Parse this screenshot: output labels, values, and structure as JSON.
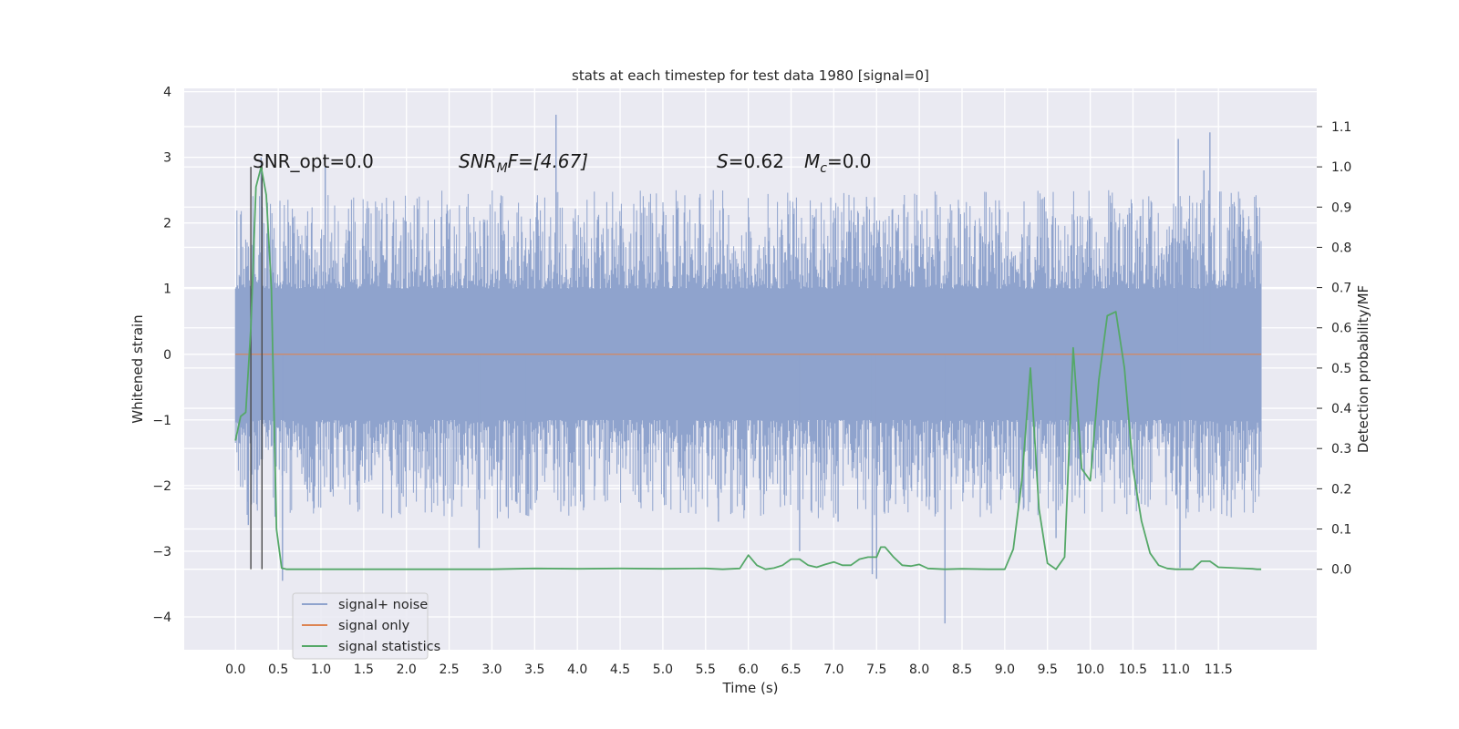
{
  "chart_data": {
    "type": "line",
    "title": "stats at each timestep for test data 1980 [signal=0]",
    "xlabel": "Time (s)",
    "ylabel": "Whitened strain",
    "y2label": "Detection probability/MF",
    "xlim": [
      -0.6,
      12.65
    ],
    "ylim": [
      -4.5,
      4.05
    ],
    "y2lim": [
      -0.2,
      1.195
    ],
    "x_ticks": [
      "0.0",
      "0.5",
      "1.0",
      "1.5",
      "2.0",
      "2.5",
      "3.0",
      "3.5",
      "4.0",
      "4.5",
      "5.0",
      "5.5",
      "6.0",
      "6.5",
      "7.0",
      "7.5",
      "8.0",
      "8.5",
      "9.0",
      "9.5",
      "10.0",
      "10.5",
      "11.0",
      "11.5"
    ],
    "y_ticks": [
      "4",
      "3",
      "2",
      "1",
      "0",
      "−1",
      "−2",
      "−3",
      "−4"
    ],
    "y2_ticks": [
      "1.1",
      "1.0",
      "0.9",
      "0.8",
      "0.7",
      "0.6",
      "0.5",
      "0.4",
      "0.3",
      "0.2",
      "0.1",
      "0.0"
    ],
    "grid": true,
    "legend_position": "lower-left",
    "annotations": {
      "snr_opt": "SNR_opt=0.0",
      "snr_mf_italic": "SNR",
      "snr_mf_sub": "M",
      "snr_mf_rest": "F=[4.67]",
      "s_italic": "S",
      "s_rest": "=0.62",
      "mc_italic": "M",
      "mc_sub": "c",
      "mc_rest": "=0.0"
    },
    "vertical_markers_x": [
      0.18,
      0.31
    ],
    "colors": {
      "signal_noise": "#8fa3cd",
      "signal_only": "#dd8452",
      "signal_statistics": "#55a868",
      "markers": "#4a4a4a",
      "background": "#eaeaf2"
    },
    "series": [
      {
        "name": "signal+ noise",
        "kind": "noise",
        "x_range": [
          0.0,
          12.0
        ],
        "envelope_core": 1.0,
        "spikes": [
          {
            "x": 0.3,
            "y": 3.0
          },
          {
            "x": 3.75,
            "y": 3.65
          },
          {
            "x": 1.05,
            "y": 2.85
          },
          {
            "x": 11.4,
            "y": 3.38
          },
          {
            "x": 11.03,
            "y": 3.28
          },
          {
            "x": 11.33,
            "y": 2.8
          },
          {
            "x": 8.3,
            "y": -4.1
          },
          {
            "x": 2.85,
            "y": -2.95
          },
          {
            "x": 7.45,
            "y": -3.35
          },
          {
            "x": 7.5,
            "y": -3.42
          },
          {
            "x": 0.55,
            "y": -3.45
          },
          {
            "x": 6.6,
            "y": -3.0
          },
          {
            "x": 11.05,
            "y": -3.25
          },
          {
            "x": 0.15,
            "y": -2.6
          },
          {
            "x": 9.6,
            "y": -2.8
          },
          {
            "x": 5.65,
            "y": -2.55
          },
          {
            "x": 3.4,
            "y": -2.45
          },
          {
            "x": 7.05,
            "y": -2.55
          }
        ]
      },
      {
        "name": "signal only",
        "kind": "flat",
        "x": [
          0.0,
          12.0
        ],
        "y": [
          0.0,
          0.0
        ]
      },
      {
        "name": "signal statistics",
        "axis": "right",
        "x": [
          0.0,
          0.06,
          0.12,
          0.18,
          0.24,
          0.3,
          0.36,
          0.42,
          0.48,
          0.54,
          0.6,
          1.0,
          2.0,
          3.0,
          3.5,
          4.0,
          4.5,
          5.0,
          5.5,
          5.7,
          5.9,
          6.0,
          6.1,
          6.2,
          6.3,
          6.4,
          6.5,
          6.6,
          6.7,
          6.8,
          6.9,
          7.0,
          7.1,
          7.2,
          7.3,
          7.4,
          7.5,
          7.55,
          7.6,
          7.7,
          7.8,
          7.9,
          8.0,
          8.1,
          8.3,
          8.5,
          8.8,
          9.0,
          9.1,
          9.2,
          9.3,
          9.4,
          9.5,
          9.6,
          9.7,
          9.8,
          9.9,
          10.0,
          10.1,
          10.2,
          10.3,
          10.4,
          10.5,
          10.6,
          10.7,
          10.8,
          10.9,
          11.0,
          11.1,
          11.2,
          11.3,
          11.4,
          11.5,
          11.7,
          11.9,
          11.95,
          12.0
        ],
        "y": [
          0.32,
          0.38,
          0.39,
          0.6,
          0.95,
          1.0,
          0.93,
          0.7,
          0.1,
          0.003,
          0.0,
          0.0,
          0.0,
          0.0,
          0.002,
          0.001,
          0.002,
          0.001,
          0.002,
          0.0,
          0.002,
          0.035,
          0.01,
          0.0,
          0.003,
          0.01,
          0.025,
          0.025,
          0.01,
          0.005,
          0.012,
          0.018,
          0.01,
          0.01,
          0.025,
          0.03,
          0.03,
          0.055,
          0.055,
          0.03,
          0.01,
          0.008,
          0.012,
          0.002,
          0.0,
          0.001,
          0.0,
          0.0,
          0.05,
          0.22,
          0.5,
          0.15,
          0.015,
          0.0,
          0.03,
          0.55,
          0.25,
          0.22,
          0.47,
          0.63,
          0.64,
          0.5,
          0.25,
          0.12,
          0.04,
          0.01,
          0.002,
          0.0,
          0.0,
          0.0,
          0.02,
          0.02,
          0.005,
          0.003,
          0.001,
          0.0,
          0.0
        ]
      }
    ]
  }
}
